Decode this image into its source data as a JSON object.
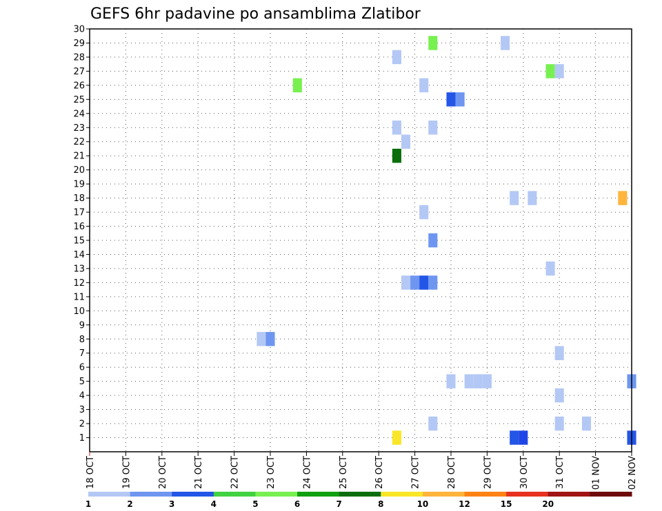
{
  "chart_data": {
    "type": "heatmap",
    "title": "GEFS 6hr padavine po ansamblima Zlatibor",
    "y_ticks": [
      "1",
      "2",
      "3",
      "4",
      "5",
      "6",
      "7",
      "8",
      "9",
      "10",
      "11",
      "12",
      "13",
      "14",
      "15",
      "16",
      "17",
      "18",
      "19",
      "20",
      "21",
      "22",
      "23",
      "24",
      "25",
      "26",
      "27",
      "28",
      "29",
      "30"
    ],
    "x_ticks": [
      "18 OCT",
      "19 OCT",
      "20 OCT",
      "21 OCT",
      "22 OCT",
      "23 OCT",
      "24 OCT",
      "25 OCT",
      "26 OCT",
      "27 OCT",
      "28 OCT",
      "29 OCT",
      "30 OCT",
      "31 OCT",
      "01 NOV",
      "02 NOV"
    ],
    "x_range_days": [
      0,
      15
    ],
    "ylim": [
      0,
      30
    ],
    "grid": true,
    "colorbar": {
      "levels": [
        "1",
        "2",
        "3",
        "4",
        "5",
        "6",
        "7",
        "8",
        "10",
        "12",
        "15",
        "20"
      ],
      "colors": [
        "#b4c8f5",
        "#6e96f0",
        "#2355e6",
        "#41d241",
        "#78f050",
        "#0fa00f",
        "#0a6e0a",
        "#fae628",
        "#ffb43c",
        "#ff8214",
        "#e6321e",
        "#a01414",
        "#6e0a0a"
      ]
    },
    "cells": [
      {
        "t": 8.5,
        "member": 1,
        "color": "#fae628"
      },
      {
        "t": 11.75,
        "member": 1,
        "color": "#2355e6"
      },
      {
        "t": 12.0,
        "member": 1,
        "color": "#1e46e6"
      },
      {
        "t": 15.0,
        "member": 1,
        "color": "#2355e6"
      },
      {
        "t": 9.5,
        "member": 2,
        "color": "#b4c8f5"
      },
      {
        "t": 13.0,
        "member": 2,
        "color": "#b4c8f5"
      },
      {
        "t": 13.75,
        "member": 2,
        "color": "#b4c8f5"
      },
      {
        "t": 13.0,
        "member": 4,
        "color": "#b4c8f5"
      },
      {
        "t": 10.0,
        "member": 5,
        "color": "#b4c8f5"
      },
      {
        "t": 10.5,
        "member": 5,
        "color": "#b4c8f5"
      },
      {
        "t": 10.75,
        "member": 5,
        "color": "#b4c8f5"
      },
      {
        "t": 11.0,
        "member": 5,
        "color": "#b4c8f5"
      },
      {
        "t": 15.0,
        "member": 5,
        "color": "#6e96f0"
      },
      {
        "t": 13.0,
        "member": 7,
        "color": "#b4c8f5"
      },
      {
        "t": 4.75,
        "member": 8,
        "color": "#b4c8f5"
      },
      {
        "t": 5.0,
        "member": 8,
        "color": "#6e96f0"
      },
      {
        "t": 8.75,
        "member": 12,
        "color": "#b4c8f5"
      },
      {
        "t": 9.0,
        "member": 12,
        "color": "#6e96f0"
      },
      {
        "t": 9.25,
        "member": 12,
        "color": "#2355e6"
      },
      {
        "t": 9.5,
        "member": 12,
        "color": "#6e96f0"
      },
      {
        "t": 12.75,
        "member": 13,
        "color": "#b4c8f5"
      },
      {
        "t": 9.5,
        "member": 15,
        "color": "#6e96f0"
      },
      {
        "t": 9.25,
        "member": 17,
        "color": "#b4c8f5"
      },
      {
        "t": 11.75,
        "member": 18,
        "color": "#b4c8f5"
      },
      {
        "t": 12.25,
        "member": 18,
        "color": "#b4c8f5"
      },
      {
        "t": 14.75,
        "member": 18,
        "color": "#ffb43c"
      },
      {
        "t": 8.5,
        "member": 21,
        "color": "#0a6e0a"
      },
      {
        "t": 8.75,
        "member": 22,
        "color": "#b4c8f5"
      },
      {
        "t": 8.5,
        "member": 23,
        "color": "#b4c8f5"
      },
      {
        "t": 9.5,
        "member": 23,
        "color": "#b4c8f5"
      },
      {
        "t": 10.0,
        "member": 25,
        "color": "#2355e6"
      },
      {
        "t": 10.25,
        "member": 25,
        "color": "#6e96f0"
      },
      {
        "t": 5.75,
        "member": 26,
        "color": "#78f050"
      },
      {
        "t": 9.25,
        "member": 26,
        "color": "#b4c8f5"
      },
      {
        "t": 12.75,
        "member": 27,
        "color": "#78f050"
      },
      {
        "t": 13.0,
        "member": 27,
        "color": "#b4c8f5"
      },
      {
        "t": 8.5,
        "member": 28,
        "color": "#b4c8f5"
      },
      {
        "t": 9.5,
        "member": 29,
        "color": "#78f050"
      },
      {
        "t": 11.5,
        "member": 29,
        "color": "#b4c8f5"
      }
    ]
  }
}
